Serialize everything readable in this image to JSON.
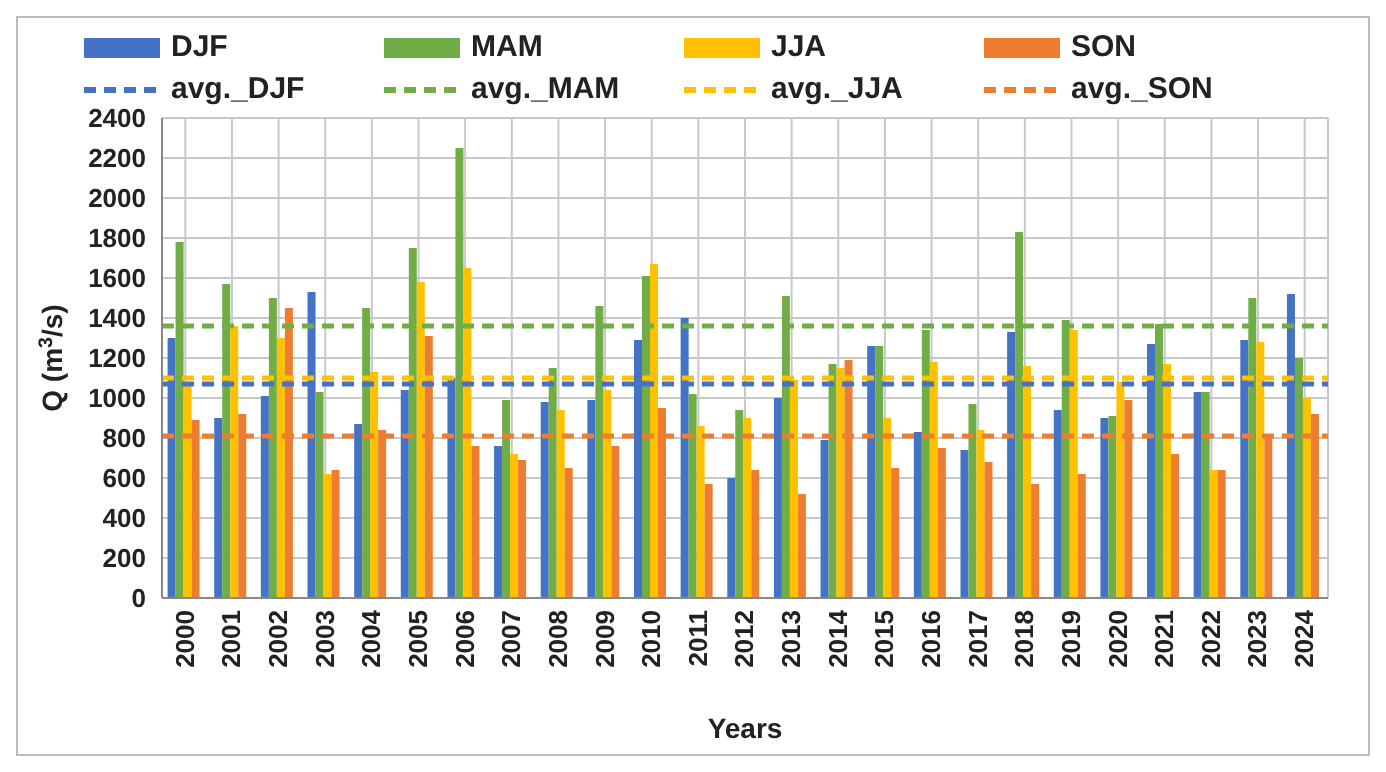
{
  "chart_data": {
    "type": "bar",
    "xlabel": "Years",
    "ylabel": "Q (m$^{3}$/s)",
    "categories": [
      "2000",
      "2001",
      "2002",
      "2003",
      "2004",
      "2005",
      "2006",
      "2007",
      "2008",
      "2009",
      "2010",
      "2011",
      "2012",
      "2013",
      "2014",
      "2015",
      "2016",
      "2017",
      "2018",
      "2019",
      "2020",
      "2021",
      "2022",
      "2023",
      "2024"
    ],
    "series": [
      {
        "name": "DJF",
        "color": "#4472c4",
        "values": [
          1300,
          900,
          1010,
          1530,
          870,
          1040,
          1100,
          760,
          980,
          990,
          1290,
          1400,
          600,
          1000,
          790,
          1260,
          830,
          740,
          1330,
          940,
          900,
          1270,
          1030,
          1290,
          1520
        ]
      },
      {
        "name": "MAM",
        "color": "#70ad47",
        "values": [
          1780,
          1570,
          1500,
          1030,
          1450,
          1750,
          2250,
          990,
          1150,
          1460,
          1610,
          1020,
          940,
          1510,
          1170,
          1260,
          1340,
          970,
          1830,
          1390,
          910,
          1370,
          1030,
          1500,
          1200
        ]
      },
      {
        "name": "JJA",
        "color": "#ffc000",
        "values": [
          1060,
          1360,
          1300,
          620,
          1130,
          1580,
          1650,
          720,
          940,
          1040,
          1670,
          860,
          900,
          1090,
          1150,
          900,
          1180,
          840,
          1160,
          1340,
          1080,
          1170,
          640,
          1280,
          1000
        ]
      },
      {
        "name": "SON",
        "color": "#ed7d31",
        "values": [
          890,
          920,
          1450,
          640,
          840,
          1310,
          760,
          690,
          650,
          760,
          950,
          570,
          640,
          520,
          1190,
          650,
          750,
          680,
          570,
          620,
          990,
          720,
          640,
          820,
          920
        ]
      }
    ],
    "ref_lines": [
      {
        "axis": "y",
        "value": 1070,
        "label": "avg._DJF",
        "color": "#4472c4",
        "line_style": "dashed"
      },
      {
        "axis": "y",
        "value": 1360,
        "label": "avg._MAM",
        "color": "#70ad47",
        "line_style": "dashed"
      },
      {
        "axis": "y",
        "value": 1100,
        "label": "avg._JJA",
        "color": "#ffc000",
        "line_style": "dashed"
      },
      {
        "axis": "y",
        "value": 810,
        "label": "avg._SON",
        "color": "#ed7d31",
        "line_style": "dashed"
      }
    ],
    "ylim": [
      0,
      2400
    ],
    "yticks": [
      0,
      200,
      400,
      600,
      800,
      1000,
      1200,
      1400,
      1600,
      1800,
      2000,
      2200,
      2400
    ],
    "grid": true,
    "legend": "top"
  }
}
